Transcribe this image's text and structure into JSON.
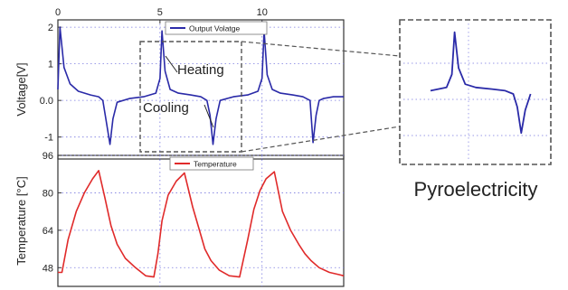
{
  "colors": {
    "voltage": "#2a2aa8",
    "temperature": "#e02a2a",
    "grid": "#7a7ae0",
    "frame": "#333333",
    "dash": "#555555"
  },
  "chart_data": [
    {
      "type": "line",
      "xlabel": "",
      "ylabel": "Voltage[V]",
      "xlim": [
        0,
        14
      ],
      "ylim": [
        -1.6,
        2.2
      ],
      "x_ticks": [
        0,
        5,
        10
      ],
      "x_tick_labels": [
        "0",
        "5",
        "10"
      ],
      "y_ticks": [
        2,
        1,
        0,
        -1
      ],
      "y_tick_labels": [
        "2",
        "1",
        "0.0",
        "-1"
      ],
      "grid": true,
      "legend_position": "top-center",
      "series": [
        {
          "name": "Output Volatge",
          "color": "#2a2aa8",
          "x": [
            0.0,
            0.1,
            0.3,
            0.6,
            1.0,
            1.6,
            2.0,
            2.2,
            2.35,
            2.55,
            2.7,
            2.9,
            3.5,
            4.2,
            4.8,
            5.0,
            5.1,
            5.25,
            5.5,
            5.9,
            6.5,
            7.0,
            7.3,
            7.45,
            7.6,
            7.75,
            7.95,
            8.6,
            9.3,
            9.8,
            10.0,
            10.1,
            10.25,
            10.5,
            10.9,
            11.5,
            12.0,
            12.35,
            12.5,
            12.65,
            12.8,
            13.0,
            13.5,
            14.0
          ],
          "y": [
            0.3,
            2.0,
            0.9,
            0.45,
            0.25,
            0.15,
            0.1,
            0.0,
            -0.5,
            -1.2,
            -0.5,
            -0.05,
            0.05,
            0.1,
            0.2,
            0.6,
            1.9,
            0.8,
            0.3,
            0.2,
            0.15,
            0.1,
            0.0,
            -0.4,
            -1.2,
            -0.5,
            0.0,
            0.1,
            0.15,
            0.25,
            0.6,
            1.9,
            0.7,
            0.3,
            0.2,
            0.15,
            0.1,
            0.0,
            -1.15,
            -0.4,
            0.0,
            0.05,
            0.1,
            0.1
          ]
        }
      ]
    },
    {
      "type": "line",
      "xlabel": "",
      "ylabel": "Temperature [°C]",
      "xlim": [
        0,
        14
      ],
      "ylim": [
        40,
        96
      ],
      "y_ticks": [
        96,
        80,
        64,
        48
      ],
      "y_tick_labels": [
        "96",
        "80",
        "64",
        "48"
      ],
      "grid": true,
      "legend_position": "top-center",
      "series": [
        {
          "name": "Temperature",
          "color": "#e02a2a",
          "x": [
            0.0,
            0.2,
            0.5,
            0.9,
            1.3,
            1.7,
            2.0,
            2.3,
            2.5,
            2.6,
            2.9,
            3.3,
            3.8,
            4.3,
            4.7,
            4.9,
            5.1,
            5.4,
            5.8,
            6.2,
            6.6,
            7.0,
            7.2,
            7.5,
            7.9,
            8.4,
            8.9,
            9.3,
            9.6,
            9.9,
            10.2,
            10.6,
            11.0,
            11.4,
            11.8,
            12.1,
            12.4,
            12.8,
            13.3,
            13.8,
            14.0
          ],
          "y": [
            46.0,
            46.0,
            60.0,
            72.0,
            80.0,
            86.0,
            89.5,
            78.0,
            70.0,
            66.0,
            58.0,
            52.0,
            48.0,
            44.5,
            44.0,
            54.0,
            68.0,
            79.0,
            85.0,
            88.5,
            74.0,
            62.0,
            56.0,
            51.0,
            47.0,
            44.5,
            44.0,
            60.0,
            73.0,
            81.0,
            86.0,
            89.0,
            72.0,
            64.0,
            58.0,
            54.0,
            51.0,
            48.0,
            46.0,
            45.0,
            44.5
          ]
        }
      ]
    }
  ],
  "annotations": {
    "heating": "Heating",
    "cooling": "Cooling"
  },
  "inset": {
    "caption": "Pyroelectricity"
  }
}
